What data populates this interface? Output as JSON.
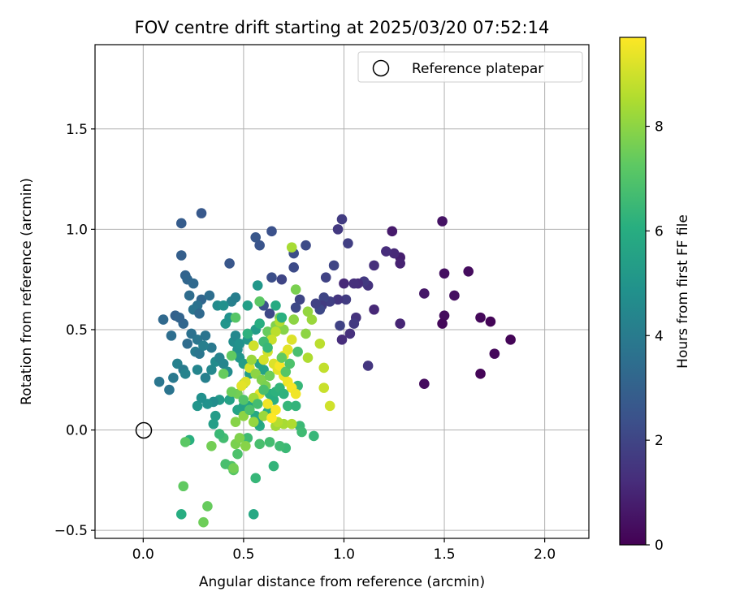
{
  "chart_data": {
    "type": "scatter",
    "title": "FOV centre drift starting at 2025/03/20 07:52:14",
    "xlabel": "Angular distance from reference (arcmin)",
    "ylabel": "Rotation from reference (arcmin)",
    "xlim": [
      -0.24,
      2.22
    ],
    "ylim": [
      -0.54,
      1.92
    ],
    "xticks": [
      0.0,
      0.5,
      1.0,
      1.5,
      2.0
    ],
    "xtick_labels": [
      "0.0",
      "0.5",
      "1.0",
      "1.5",
      "2.0"
    ],
    "yticks": [
      -0.5,
      0.0,
      0.5,
      1.0,
      1.5
    ],
    "ytick_labels": [
      "−0.5",
      "0.0",
      "0.5",
      "1.0",
      "1.5"
    ],
    "grid": true,
    "legend": {
      "placement": "top-right",
      "label": "Reference platepar"
    },
    "reference_point": {
      "x": 0.0,
      "y": 0.0
    },
    "colorbar": {
      "label": "Hours from first FF file",
      "min": 0,
      "max": 9.7,
      "ticks": [
        0,
        2,
        4,
        6,
        8
      ],
      "tick_labels": [
        "0",
        "2",
        "4",
        "6",
        "8"
      ],
      "colormap": "viridis"
    },
    "points": [
      [
        1.83,
        0.45,
        0.1
      ],
      [
        1.75,
        0.38,
        0.2
      ],
      [
        1.73,
        0.54,
        0.1
      ],
      [
        1.68,
        0.56,
        0.2
      ],
      [
        1.68,
        0.28,
        0.1
      ],
      [
        1.62,
        0.79,
        0.3
      ],
      [
        1.55,
        0.67,
        0.4
      ],
      [
        1.5,
        0.57,
        0.3
      ],
      [
        1.5,
        0.78,
        0.4
      ],
      [
        1.49,
        0.53,
        0.2
      ],
      [
        1.49,
        1.04,
        0.5
      ],
      [
        1.4,
        0.68,
        0.6
      ],
      [
        1.4,
        0.23,
        0.3
      ],
      [
        1.28,
        0.86,
        0.8
      ],
      [
        1.28,
        0.83,
        0.9
      ],
      [
        1.28,
        0.53,
        1.0
      ],
      [
        1.25,
        0.88,
        1.1
      ],
      [
        1.24,
        0.99,
        0.7
      ],
      [
        1.21,
        0.89,
        1.2
      ],
      [
        1.15,
        0.82,
        1.3
      ],
      [
        1.15,
        0.6,
        1.1
      ],
      [
        1.12,
        0.72,
        1.4
      ],
      [
        1.12,
        0.32,
        1.5
      ],
      [
        1.1,
        0.74,
        1.6
      ],
      [
        1.07,
        0.73,
        1.2
      ],
      [
        1.05,
        0.73,
        1.3
      ],
      [
        1.06,
        0.56,
        1.4
      ],
      [
        1.05,
        0.53,
        1.6
      ],
      [
        1.03,
        0.48,
        1.3
      ],
      [
        1.01,
        0.65,
        1.7
      ],
      [
        1.0,
        0.73,
        1.1
      ],
      [
        1.02,
        0.93,
        1.8
      ],
      [
        0.99,
        1.05,
        1.7
      ],
      [
        0.97,
        1.0,
        1.6
      ],
      [
        0.97,
        0.65,
        1.5
      ],
      [
        0.98,
        0.52,
        1.9
      ],
      [
        0.99,
        0.45,
        1.2
      ],
      [
        0.95,
        0.82,
        2.0
      ],
      [
        0.93,
        0.64,
        1.8
      ],
      [
        0.91,
        0.76,
        1.9
      ],
      [
        0.9,
        0.66,
        2.0
      ],
      [
        0.89,
        0.62,
        1.7
      ],
      [
        0.88,
        0.6,
        2.1
      ],
      [
        0.86,
        0.63,
        1.9
      ],
      [
        0.81,
        0.92,
        2.2
      ],
      [
        0.78,
        0.65,
        2.0
      ],
      [
        0.76,
        0.61,
        2.1
      ],
      [
        0.75,
        0.81,
        2.2
      ],
      [
        0.75,
        0.88,
        2.3
      ],
      [
        0.69,
        0.75,
        2.0
      ],
      [
        0.64,
        0.76,
        2.3
      ],
      [
        0.64,
        0.99,
        2.4
      ],
      [
        0.58,
        0.92,
        2.5
      ],
      [
        0.56,
        0.96,
        2.6
      ],
      [
        0.63,
        0.58,
        2.1
      ],
      [
        0.6,
        0.62,
        2.4
      ],
      [
        0.43,
        0.83,
        2.6
      ],
      [
        0.29,
        1.08,
        2.7
      ],
      [
        0.19,
        1.03,
        2.8
      ],
      [
        0.19,
        0.87,
        2.9
      ],
      [
        0.21,
        0.77,
        3.1
      ],
      [
        0.22,
        0.75,
        3.2
      ],
      [
        0.25,
        0.73,
        3.3
      ],
      [
        0.23,
        0.67,
        3.4
      ],
      [
        0.29,
        0.65,
        3.2
      ],
      [
        0.33,
        0.67,
        3.5
      ],
      [
        0.27,
        0.62,
        3.6
      ],
      [
        0.25,
        0.6,
        3.7
      ],
      [
        0.28,
        0.58,
        3.3
      ],
      [
        0.2,
        0.53,
        3.2
      ],
      [
        0.16,
        0.57,
        3.0
      ],
      [
        0.18,
        0.56,
        3.1
      ],
      [
        0.1,
        0.55,
        3.3
      ],
      [
        0.14,
        0.47,
        3.5
      ],
      [
        0.22,
        0.43,
        3.4
      ],
      [
        0.24,
        0.48,
        3.6
      ],
      [
        0.27,
        0.45,
        3.8
      ],
      [
        0.31,
        0.47,
        3.7
      ],
      [
        0.34,
        0.41,
        3.9
      ],
      [
        0.26,
        0.39,
        4.0
      ],
      [
        0.28,
        0.38,
        3.8
      ],
      [
        0.3,
        0.42,
        4.1
      ],
      [
        0.17,
        0.33,
        4.2
      ],
      [
        0.2,
        0.3,
        4.0
      ],
      [
        0.21,
        0.28,
        4.3
      ],
      [
        0.15,
        0.26,
        3.9
      ],
      [
        0.08,
        0.24,
        3.8
      ],
      [
        0.13,
        0.2,
        3.7
      ],
      [
        0.27,
        0.3,
        4.4
      ],
      [
        0.31,
        0.26,
        4.2
      ],
      [
        0.34,
        0.3,
        4.5
      ],
      [
        0.36,
        0.34,
        4.6
      ],
      [
        0.38,
        0.36,
        4.3
      ],
      [
        0.4,
        0.33,
        4.4
      ],
      [
        0.42,
        0.29,
        4.6
      ],
      [
        0.45,
        0.44,
        4.7
      ],
      [
        0.46,
        0.47,
        4.5
      ],
      [
        0.47,
        0.4,
        4.8
      ],
      [
        0.48,
        0.43,
        4.9
      ],
      [
        0.48,
        0.36,
        5.0
      ],
      [
        0.44,
        0.64,
        4.2
      ],
      [
        0.46,
        0.66,
        4.1
      ],
      [
        0.37,
        0.62,
        4.6
      ],
      [
        0.4,
        0.62,
        4.8
      ],
      [
        0.41,
        0.53,
        5.0
      ],
      [
        0.43,
        0.56,
        4.9
      ],
      [
        0.52,
        0.45,
        5.1
      ],
      [
        0.55,
        0.42,
        5.2
      ],
      [
        0.56,
        0.5,
        5.3
      ],
      [
        0.57,
        0.72,
        5.1
      ],
      [
        0.52,
        0.62,
        5.4
      ],
      [
        0.5,
        0.33,
        5.3
      ],
      [
        0.53,
        0.28,
        5.4
      ],
      [
        0.58,
        0.33,
        5.5
      ],
      [
        0.6,
        0.3,
        5.6
      ],
      [
        0.38,
        0.15,
        5.2
      ],
      [
        0.35,
        0.14,
        4.7
      ],
      [
        0.32,
        0.13,
        4.9
      ],
      [
        0.27,
        0.12,
        5.0
      ],
      [
        0.29,
        0.16,
        4.8
      ],
      [
        0.36,
        0.07,
        5.3
      ],
      [
        0.35,
        0.03,
        5.4
      ],
      [
        0.43,
        0.15,
        5.5
      ],
      [
        0.47,
        0.1,
        5.6
      ],
      [
        0.5,
        0.12,
        5.5
      ],
      [
        0.53,
        0.12,
        5.7
      ],
      [
        0.56,
        0.07,
        5.8
      ],
      [
        0.58,
        0.02,
        5.9
      ],
      [
        0.57,
        0.04,
        5.6
      ],
      [
        0.62,
        0.09,
        6.0
      ],
      [
        0.63,
        0.18,
        6.1
      ],
      [
        0.65,
        0.15,
        6.0
      ],
      [
        0.66,
        0.19,
        6.2
      ],
      [
        0.68,
        0.21,
        6.3
      ],
      [
        0.7,
        0.18,
        6.2
      ],
      [
        0.72,
        0.12,
        6.4
      ],
      [
        0.76,
        0.12,
        6.3
      ],
      [
        0.77,
        0.22,
        6.4
      ],
      [
        0.78,
        0.02,
        6.5
      ],
      [
        0.85,
        -0.03,
        6.4
      ],
      [
        0.79,
        -0.01,
        6.6
      ],
      [
        0.71,
        -0.09,
        6.5
      ],
      [
        0.68,
        -0.08,
        6.6
      ],
      [
        0.63,
        -0.06,
        6.7
      ],
      [
        0.58,
        -0.07,
        6.8
      ],
      [
        0.52,
        -0.04,
        6.6
      ],
      [
        0.47,
        -0.12,
        6.9
      ],
      [
        0.44,
        -0.18,
        7.0
      ],
      [
        0.45,
        -0.2,
        7.1
      ],
      [
        0.41,
        -0.17,
        6.8
      ],
      [
        0.4,
        -0.04,
        6.7
      ],
      [
        0.38,
        -0.02,
        6.5
      ],
      [
        0.65,
        -0.18,
        6.3
      ],
      [
        0.56,
        -0.24,
        6.4
      ],
      [
        0.55,
        -0.42,
        5.8
      ],
      [
        0.19,
        -0.42,
        6.0
      ],
      [
        0.23,
        -0.05,
        6.1
      ],
      [
        0.21,
        -0.06,
        7.2
      ],
      [
        0.2,
        -0.28,
        7.3
      ],
      [
        0.32,
        -0.38,
        7.4
      ],
      [
        0.3,
        -0.46,
        7.5
      ],
      [
        0.34,
        -0.08,
        7.6
      ],
      [
        0.46,
        -0.07,
        7.7
      ],
      [
        0.48,
        -0.04,
        7.8
      ],
      [
        0.51,
        -0.08,
        7.9
      ],
      [
        0.45,
        -0.19,
        7.6
      ],
      [
        0.46,
        0.04,
        7.9
      ],
      [
        0.5,
        0.07,
        8.0
      ],
      [
        0.55,
        0.04,
        8.1
      ],
      [
        0.6,
        0.07,
        8.2
      ],
      [
        0.66,
        0.02,
        8.3
      ],
      [
        0.7,
        0.03,
        8.4
      ],
      [
        0.74,
        0.03,
        8.5
      ],
      [
        0.67,
        0.04,
        8.6
      ],
      [
        0.5,
        0.23,
        7.7
      ],
      [
        0.47,
        0.18,
        7.6
      ],
      [
        0.44,
        0.19,
        7.5
      ],
      [
        0.4,
        0.28,
        7.4
      ],
      [
        0.44,
        0.37,
        7.3
      ],
      [
        0.46,
        0.56,
        7.1
      ],
      [
        0.58,
        0.64,
        7.2
      ],
      [
        0.62,
        0.49,
        7.4
      ],
      [
        0.63,
        0.45,
        7.6
      ],
      [
        0.66,
        0.52,
        7.8
      ],
      [
        0.68,
        0.56,
        7.6
      ],
      [
        0.7,
        0.5,
        7.9
      ],
      [
        0.75,
        0.55,
        8.0
      ],
      [
        0.76,
        0.7,
        7.7
      ],
      [
        0.82,
        0.59,
        8.1
      ],
      [
        0.84,
        0.55,
        8.2
      ],
      [
        0.81,
        0.48,
        8.0
      ],
      [
        0.82,
        0.36,
        8.5
      ],
      [
        0.88,
        0.43,
        8.7
      ],
      [
        0.9,
        0.31,
        8.8
      ],
      [
        0.9,
        0.21,
        8.9
      ],
      [
        0.93,
        0.12,
        9.0
      ],
      [
        0.74,
        0.91,
        8.4
      ],
      [
        0.68,
        0.54,
        8.6
      ],
      [
        0.66,
        0.49,
        8.7
      ],
      [
        0.64,
        0.45,
        8.9
      ],
      [
        0.62,
        0.39,
        9.0
      ],
      [
        0.6,
        0.35,
        9.1
      ],
      [
        0.65,
        0.33,
        9.2
      ],
      [
        0.67,
        0.3,
        9.3
      ],
      [
        0.7,
        0.27,
        9.4
      ],
      [
        0.72,
        0.24,
        9.5
      ],
      [
        0.74,
        0.21,
        9.6
      ],
      [
        0.76,
        0.18,
        9.5
      ],
      [
        0.74,
        0.45,
        9.2
      ],
      [
        0.72,
        0.4,
        9.3
      ],
      [
        0.7,
        0.37,
        9.4
      ],
      [
        0.68,
        0.32,
        9.6
      ],
      [
        0.55,
        0.42,
        9.0
      ],
      [
        0.53,
        0.31,
        9.1
      ],
      [
        0.51,
        0.24,
        9.2
      ],
      [
        0.49,
        0.22,
        9.3
      ],
      [
        0.58,
        0.18,
        9.4
      ],
      [
        0.62,
        0.13,
        9.5
      ],
      [
        0.66,
        0.1,
        9.6
      ],
      [
        0.64,
        0.06,
        9.7
      ],
      [
        0.55,
        0.16,
        8.3
      ],
      [
        0.54,
        0.35,
        8.2
      ],
      [
        0.56,
        0.28,
        8.0
      ],
      [
        0.59,
        0.25,
        7.8
      ],
      [
        0.61,
        0.22,
        7.7
      ],
      [
        0.63,
        0.27,
        7.5
      ],
      [
        0.69,
        0.36,
        7.3
      ],
      [
        0.71,
        0.29,
        7.1
      ],
      [
        0.73,
        0.33,
        6.9
      ],
      [
        0.77,
        0.39,
        6.8
      ],
      [
        0.6,
        0.44,
        6.6
      ],
      [
        0.62,
        0.41,
        6.4
      ],
      [
        0.52,
        0.48,
        6.2
      ],
      [
        0.58,
        0.53,
        6.0
      ],
      [
        0.66,
        0.62,
        5.9
      ],
      [
        0.69,
        0.56,
        6.1
      ],
      [
        0.6,
        0.2,
        6.8
      ],
      [
        0.57,
        0.13,
        6.7
      ],
      [
        0.53,
        0.1,
        6.9
      ],
      [
        0.5,
        0.15,
        7.0
      ]
    ]
  }
}
